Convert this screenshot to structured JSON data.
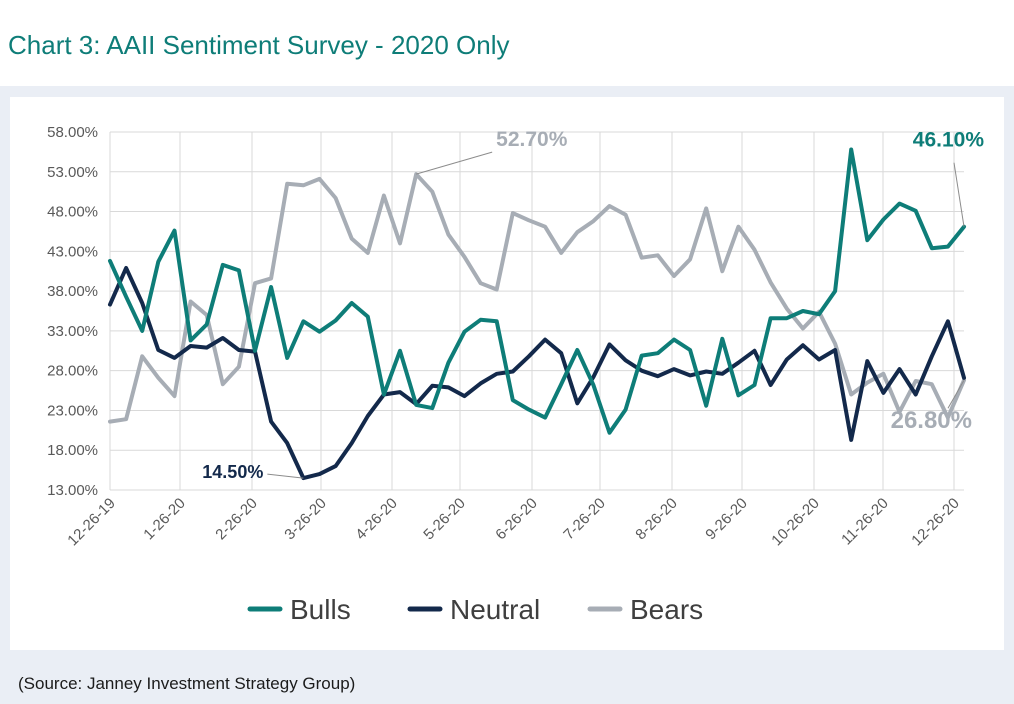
{
  "title": "Chart 3:  AAII Sentiment Survey - 2020 Only",
  "source": "(Source: Janney Investment Strategy Group)",
  "colors": {
    "bulls": "#0e7d78",
    "neutral": "#13294b",
    "bears": "#a7adb5",
    "grid": "#d9d9d9",
    "axis_text": "#595959"
  },
  "chart_data": {
    "type": "line",
    "title": "Chart 3:  AAII Sentiment Survey - 2020 Only",
    "xlabel": "",
    "ylabel": "",
    "ylim": [
      13,
      58
    ],
    "grid": true,
    "legend_position": "bottom",
    "y_ticks": [
      "13.00%",
      "18.00%",
      "23.00%",
      "28.00%",
      "33.00%",
      "38.00%",
      "43.00%",
      "48.00%",
      "53.00%",
      "58.00%"
    ],
    "x_tick_labels": [
      "12-26-19",
      "1-26-20",
      "2-26-20",
      "3-26-20",
      "4-26-20",
      "5-26-20",
      "6-26-20",
      "7-26-20",
      "8-26-20",
      "9-26-20",
      "10-26-20",
      "11-26-20",
      "12-26-20"
    ],
    "x_count": 54,
    "series": [
      {
        "name": "Bulls",
        "values": [
          41.8,
          37.3,
          33.0,
          41.7,
          45.6,
          31.8,
          33.8,
          41.3,
          40.6,
          30.5,
          38.5,
          29.6,
          34.2,
          32.9,
          34.3,
          36.5,
          34.8,
          25.0,
          30.5,
          23.7,
          23.3,
          29.0,
          32.9,
          34.4,
          34.2,
          24.3,
          23.1,
          22.1,
          26.3,
          30.6,
          26.2,
          20.2,
          23.1,
          29.9,
          30.2,
          31.9,
          30.6,
          23.6,
          32.0,
          24.9,
          26.2,
          34.6,
          34.6,
          35.5,
          35.1,
          38.0,
          55.8,
          44.4,
          47.0,
          49.0,
          48.1,
          43.4,
          43.6,
          46.1
        ]
      },
      {
        "name": "Neutral",
        "values": [
          36.3,
          40.9,
          36.5,
          30.6,
          29.6,
          31.1,
          30.9,
          32.1,
          30.6,
          30.4,
          21.6,
          18.9,
          14.5,
          15.0,
          16.0,
          18.9,
          22.3,
          25.0,
          25.3,
          23.8,
          26.1,
          25.9,
          24.8,
          26.4,
          27.6,
          27.9,
          29.8,
          31.9,
          30.2,
          23.9,
          27.2,
          31.3,
          29.3,
          28.0,
          27.3,
          28.2,
          27.4,
          27.9,
          27.6,
          29.0,
          30.5,
          26.2,
          29.4,
          31.2,
          29.4,
          30.6,
          19.3,
          29.2,
          25.2,
          28.2,
          25.0,
          29.8,
          34.2,
          27.1
        ]
      },
      {
        "name": "Bears",
        "values": [
          21.6,
          21.9,
          29.8,
          27.1,
          24.8,
          36.7,
          35.0,
          26.3,
          28.5,
          39.0,
          39.6,
          51.5,
          51.3,
          52.1,
          49.7,
          44.6,
          42.8,
          50.0,
          44.0,
          52.7,
          50.5,
          45.1,
          42.3,
          39.0,
          38.2,
          47.8,
          46.9,
          46.1,
          42.8,
          45.4,
          46.8,
          48.7,
          47.6,
          42.2,
          42.5,
          39.9,
          42.0,
          48.4,
          40.5,
          46.1,
          43.2,
          39.1,
          35.8,
          33.3,
          35.4,
          31.4,
          25.0,
          26.5,
          27.6,
          22.8,
          26.7,
          26.3,
          22.1,
          26.8
        ]
      }
    ],
    "annotations": [
      {
        "series": "Bears",
        "index": 19,
        "text": "52.70%"
      },
      {
        "series": "Neutral",
        "index": 12,
        "text": "14.50%"
      },
      {
        "series": "Bulls",
        "index": 53,
        "text": "46.10%"
      },
      {
        "series": "Bears",
        "index": 53,
        "text": "26.80%"
      }
    ]
  }
}
